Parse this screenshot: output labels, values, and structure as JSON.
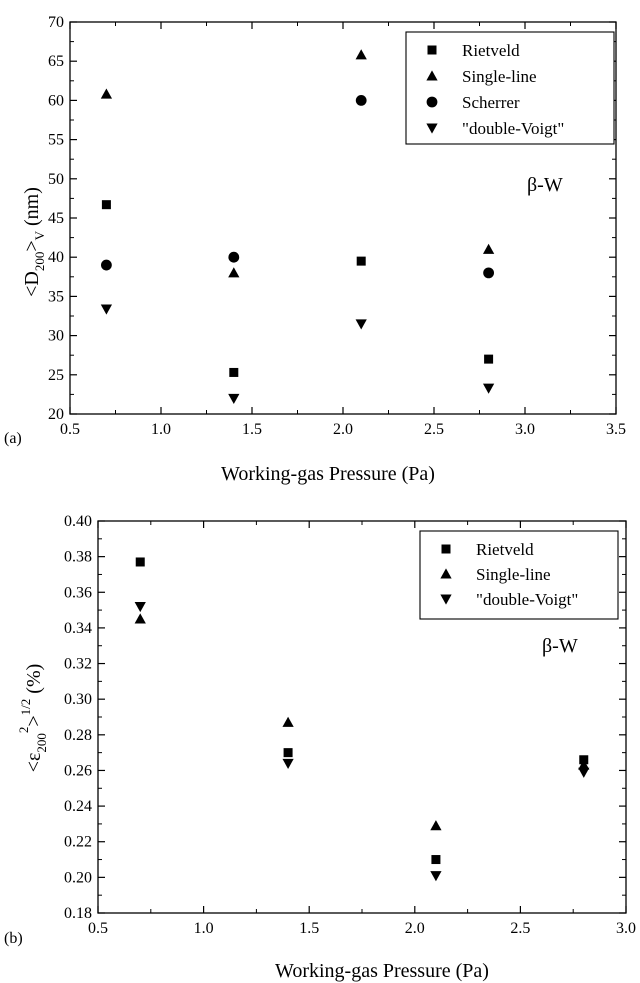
{
  "chart_data": [
    {
      "type": "scatter",
      "panel_label": "(a)",
      "xlabel": "Working-gas Pressure (Pa)",
      "ylabel": "<D200>V (nm)",
      "ylabel_parts": {
        "lt": "<D",
        "sub": "200",
        "gt": ">",
        "subv": "V",
        "unit": " (nm)"
      },
      "annotation": "β-W",
      "xlim": [
        0.5,
        3.5
      ],
      "ylim": [
        20,
        70
      ],
      "xticks": [
        "0.5",
        "1.0",
        "1.5",
        "2.0",
        "2.5",
        "3.0",
        "3.5"
      ],
      "yticks": [
        "20",
        "25",
        "30",
        "35",
        "40",
        "45",
        "50",
        "55",
        "60",
        "65",
        "70"
      ],
      "grid": false,
      "legend_position": "top-right",
      "series": [
        {
          "name": "Rietveld",
          "marker": "square",
          "x": [
            0.7,
            1.4,
            2.1,
            2.8
          ],
          "y": [
            46.7,
            25.3,
            39.5,
            27.0
          ]
        },
        {
          "name": "Single-line",
          "marker": "triangle-up",
          "x": [
            0.7,
            1.4,
            2.1,
            2.8
          ],
          "y": [
            60.8,
            38.0,
            65.8,
            41.0
          ]
        },
        {
          "name": "Scherrer",
          "marker": "circle",
          "x": [
            0.7,
            1.4,
            2.1,
            2.8
          ],
          "y": [
            39.0,
            40.0,
            60.0,
            38.0
          ]
        },
        {
          "name": "\"double-Voigt\"",
          "marker": "triangle-down",
          "x": [
            0.7,
            1.4,
            2.1,
            2.8
          ],
          "y": [
            33.4,
            22.0,
            31.5,
            23.3
          ]
        }
      ]
    },
    {
      "type": "scatter",
      "panel_label": "(b)",
      "xlabel": "Working-gas Pressure (Pa)",
      "ylabel": "<ε200²>^1/2 (%)",
      "ylabel_parts": {
        "lt": "<ε",
        "sub": "200",
        "sup": "2",
        "gt": ">",
        "exp": "1/2",
        "unit": " (%)"
      },
      "annotation": "β-W",
      "xlim": [
        0.5,
        3.0
      ],
      "ylim": [
        0.18,
        0.4
      ],
      "xticks": [
        "0.5",
        "1.0",
        "1.5",
        "2.0",
        "2.5",
        "3.0"
      ],
      "yticks": [
        "0.18",
        "0.20",
        "0.22",
        "0.24",
        "0.26",
        "0.28",
        "0.30",
        "0.32",
        "0.34",
        "0.36",
        "0.38",
        "0.40"
      ],
      "grid": false,
      "legend_position": "top-right",
      "series": [
        {
          "name": "Rietveld",
          "marker": "square",
          "x": [
            0.7,
            1.4,
            2.1,
            2.8
          ],
          "y": [
            0.377,
            0.27,
            0.21,
            0.266
          ]
        },
        {
          "name": "Single-line",
          "marker": "triangle-up",
          "x": [
            0.7,
            1.4,
            2.1,
            2.8
          ],
          "y": [
            0.345,
            0.287,
            0.229,
            0.263
          ]
        },
        {
          "name": "\"double-Voigt\"",
          "marker": "triangle-down",
          "x": [
            0.7,
            1.4,
            2.1,
            2.8
          ],
          "y": [
            0.352,
            0.264,
            0.201,
            0.259
          ]
        }
      ]
    }
  ]
}
